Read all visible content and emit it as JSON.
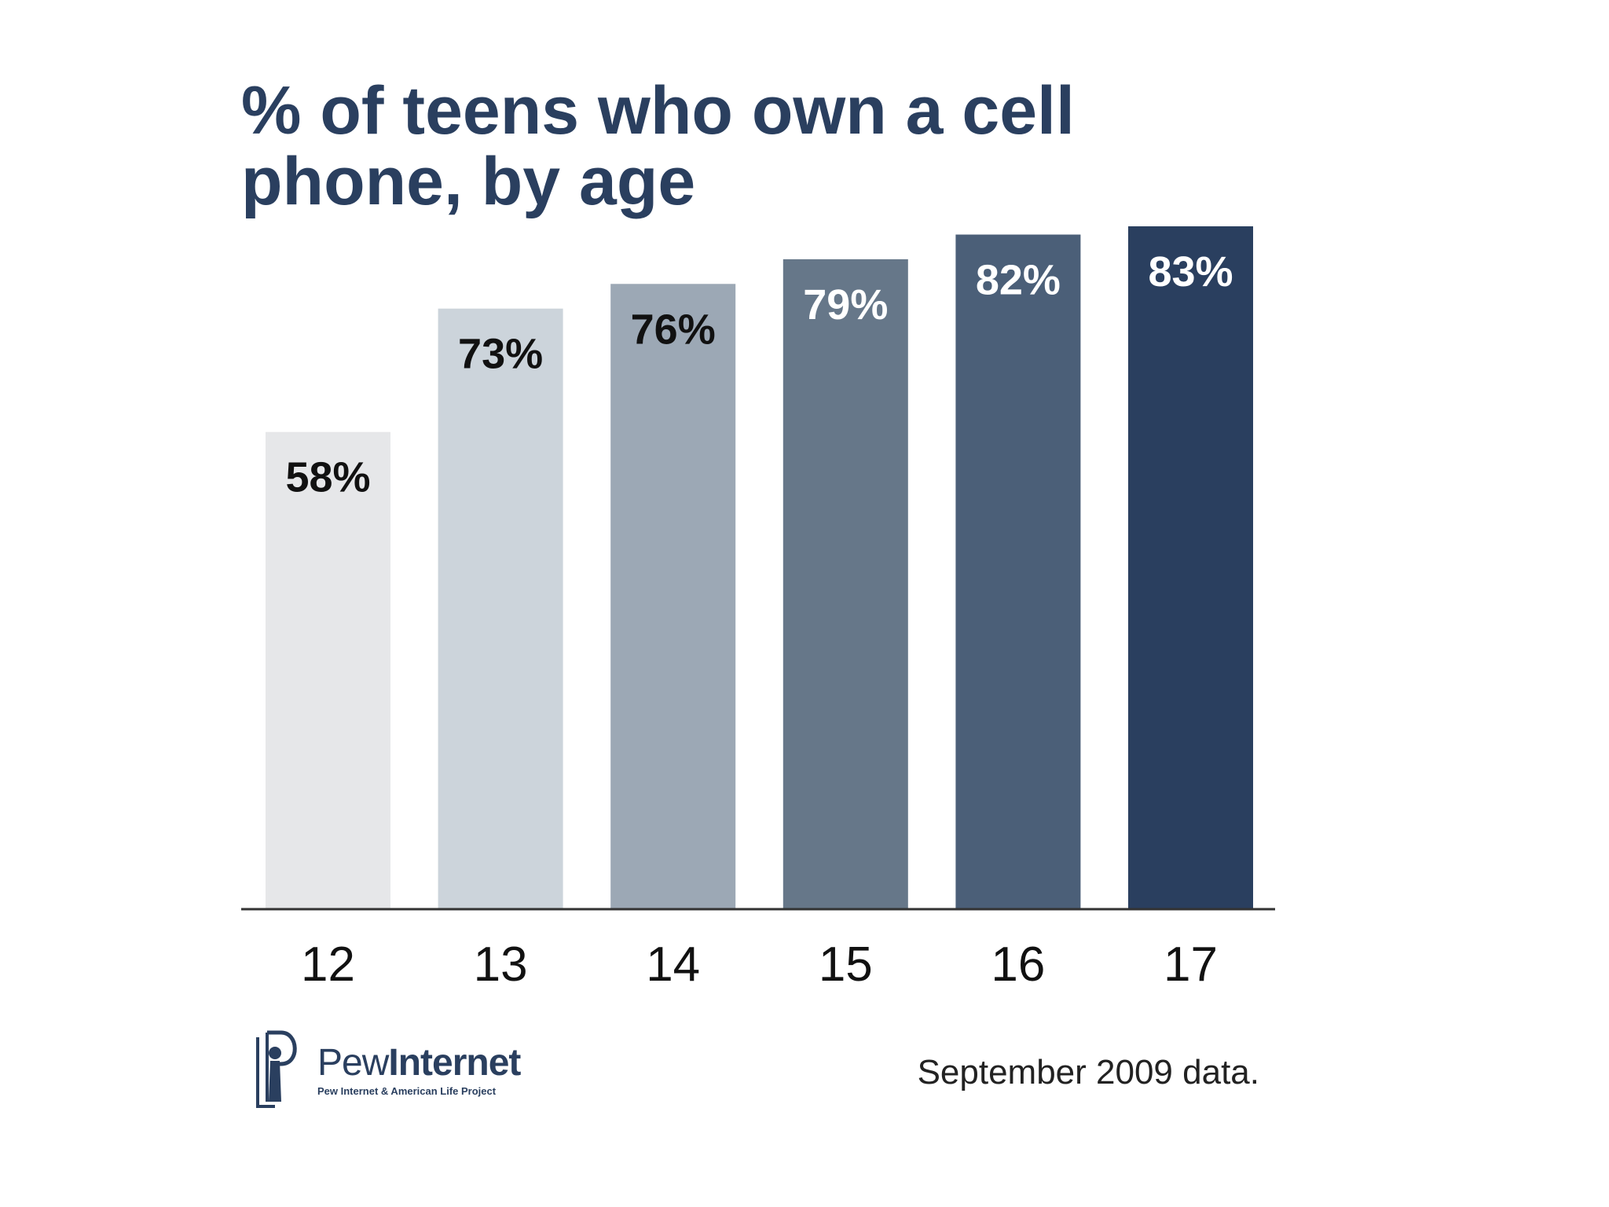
{
  "chart_data": {
    "type": "bar",
    "title_lines": [
      "% of teens who own a cell",
      "phone, by age"
    ],
    "categories": [
      "12",
      "13",
      "14",
      "15",
      "16",
      "17"
    ],
    "values": [
      58,
      73,
      76,
      79,
      82,
      83
    ],
    "value_labels": [
      "58%",
      "73%",
      "76%",
      "79%",
      "82%",
      "83%"
    ],
    "bar_colors": [
      "#e6e7e9",
      "#ccd4db",
      "#9ca8b5",
      "#667789",
      "#4b5f78",
      "#2a3f5f"
    ],
    "label_colors": [
      "#111111",
      "#111111",
      "#111111",
      "#ffffff",
      "#ffffff",
      "#ffffff"
    ],
    "ylim": [
      0,
      100
    ],
    "xlabel": "",
    "ylabel": "",
    "grid": false,
    "legend": "none"
  },
  "footer": {
    "logo_word_1": "Pew",
    "logo_word_2": "Internet",
    "logo_tagline": "Pew Internet & American Life Project",
    "note": "September 2009 data."
  },
  "colors": {
    "title": "#2a3f5f",
    "axis": "#333333"
  }
}
